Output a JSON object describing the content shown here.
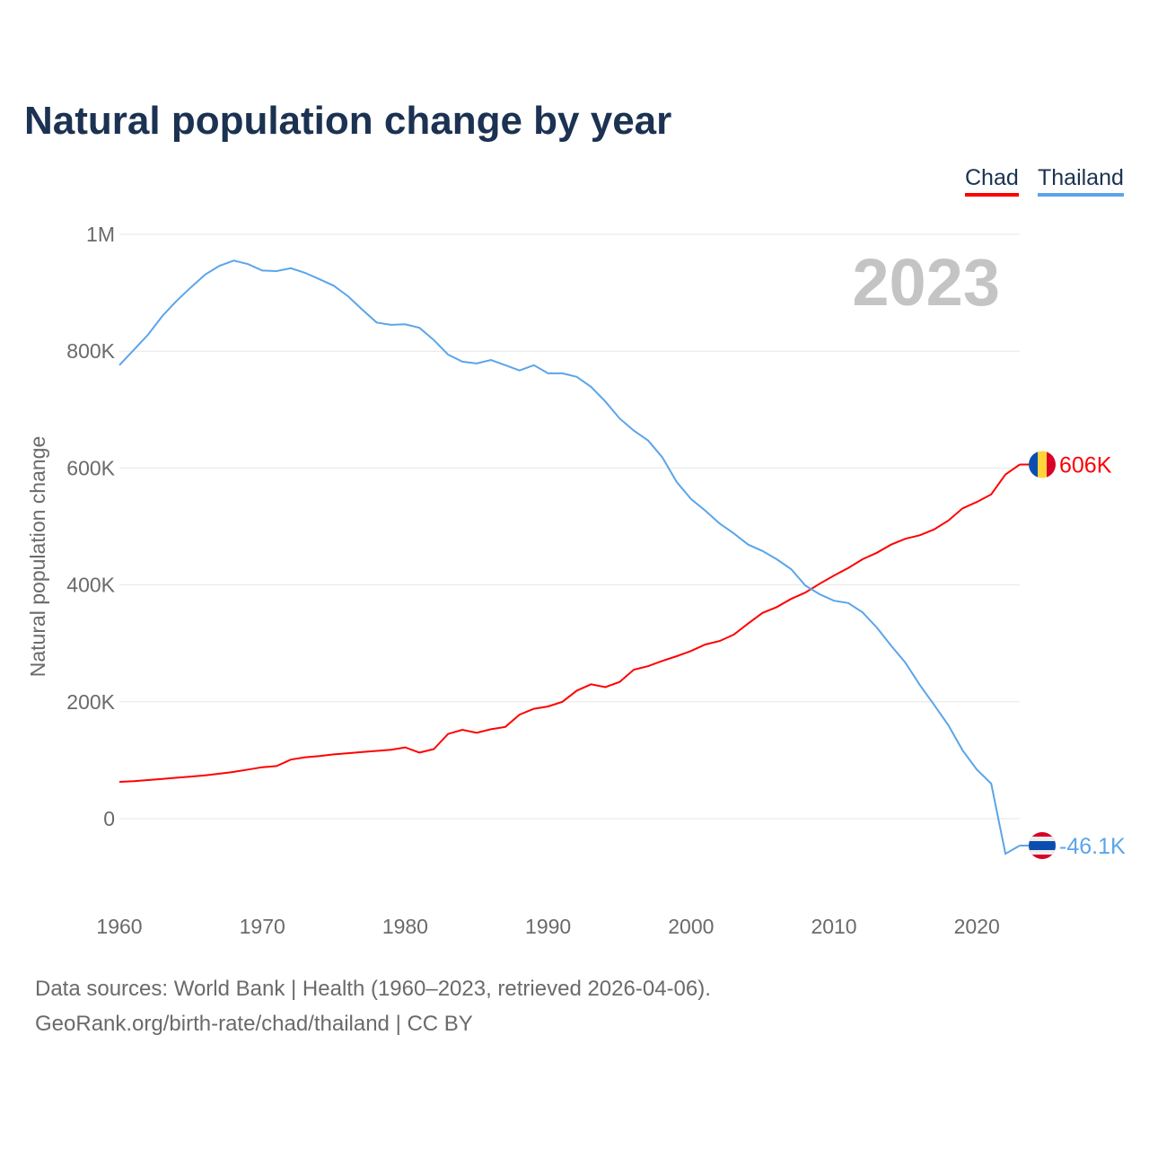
{
  "title": "Natural population change by year",
  "legend": [
    "Chad",
    "Thailand"
  ],
  "year_label": "2023",
  "sources": {
    "line1": "Data sources: World Bank | Health (1960–2023, retrieved 2026-04-06).",
    "line2": "GeoRank.org/birth-rate/chad/thailand | CC BY"
  },
  "chart_data": {
    "type": "line",
    "title": "Natural population change by year",
    "xlabel": "",
    "ylabel": "Natural population change",
    "xlim": [
      1960,
      2023
    ],
    "ylim": [
      -100000,
      1000000
    ],
    "x_ticks": [
      1960,
      1970,
      1980,
      1990,
      2000,
      2010,
      2020
    ],
    "y_ticks": [
      0,
      200000,
      400000,
      600000,
      800000,
      1000000
    ],
    "y_tick_labels": [
      "0",
      "200K",
      "400K",
      "600K",
      "800K",
      "1M"
    ],
    "grid": true,
    "legend_position": "top-right",
    "x": [
      1960,
      1961,
      1962,
      1963,
      1964,
      1965,
      1966,
      1967,
      1968,
      1969,
      1970,
      1971,
      1972,
      1973,
      1974,
      1975,
      1976,
      1977,
      1978,
      1979,
      1980,
      1981,
      1982,
      1983,
      1984,
      1985,
      1986,
      1987,
      1988,
      1989,
      1990,
      1991,
      1992,
      1993,
      1994,
      1995,
      1996,
      1997,
      1998,
      1999,
      2000,
      2001,
      2002,
      2003,
      2004,
      2005,
      2006,
      2007,
      2008,
      2009,
      2010,
      2011,
      2012,
      2013,
      2014,
      2015,
      2016,
      2017,
      2018,
      2019,
      2020,
      2021,
      2022,
      2023
    ],
    "series": [
      {
        "name": "Chad",
        "color": "#ff0000",
        "end_label": "606K",
        "values": [
          63000,
          64000,
          66000,
          68000,
          70000,
          72000,
          74000,
          77000,
          80000,
          84000,
          88000,
          90000,
          101000,
          105000,
          107000,
          110000,
          112000,
          114000,
          116000,
          118000,
          122000,
          113000,
          119000,
          145000,
          152000,
          147000,
          153000,
          157000,
          178000,
          188000,
          192000,
          200000,
          219000,
          230000,
          225000,
          234000,
          255000,
          261000,
          270000,
          278000,
          287000,
          298000,
          304000,
          315000,
          334000,
          352000,
          362000,
          376000,
          387000,
          402000,
          416000,
          429000,
          444000,
          455000,
          469000,
          479000,
          485000,
          495000,
          510000,
          531000,
          542000,
          555000,
          589000,
          606000
        ]
      },
      {
        "name": "Thailand",
        "color": "#5aa5ea",
        "end_label": "-46.1K",
        "values": [
          776000,
          802000,
          828000,
          860000,
          886000,
          909000,
          931000,
          946000,
          955000,
          949000,
          938000,
          937000,
          942000,
          934000,
          923000,
          912000,
          894000,
          871000,
          849000,
          845000,
          846000,
          840000,
          819000,
          794000,
          782000,
          779000,
          785000,
          776000,
          767000,
          776000,
          762000,
          762000,
          756000,
          739000,
          714000,
          685000,
          664000,
          647000,
          618000,
          576000,
          547000,
          527000,
          505000,
          488000,
          469000,
          458000,
          444000,
          427000,
          399000,
          384000,
          373000,
          369000,
          353000,
          327000,
          296000,
          267000,
          229000,
          195000,
          160000,
          117000,
          84000,
          60000,
          -60000,
          -46100
        ]
      }
    ]
  }
}
